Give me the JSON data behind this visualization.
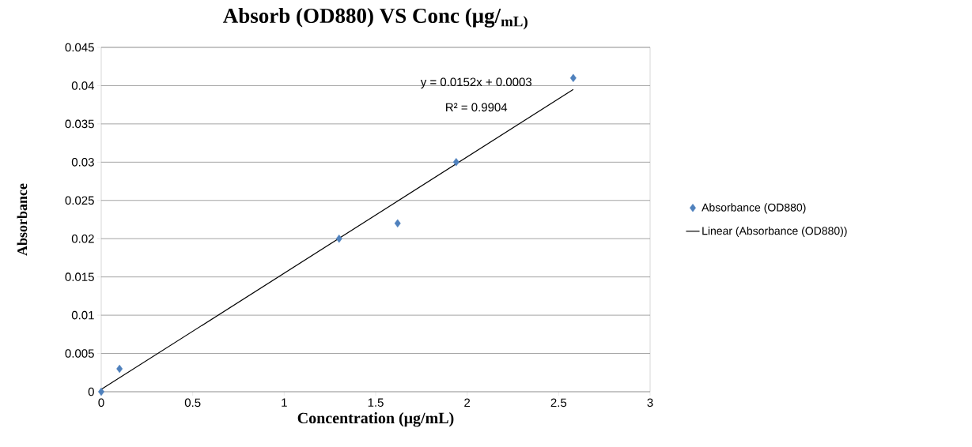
{
  "chart_data": {
    "type": "scatter",
    "title": "Absorb (OD880) VS Conc (μg/$_{mL)}$",
    "xlabel": "Concentration (μg/mL)",
    "ylabel": "Absorbance",
    "series": [
      {
        "name": "Absorbance (OD880)",
        "color": "#4f81bd",
        "marker": "diamond",
        "x": [
          0,
          0.1,
          1.3,
          1.62,
          1.94,
          2.58
        ],
        "values": [
          0,
          0.003,
          0.02,
          0.022,
          0.03,
          0.041
        ]
      },
      {
        "name": "Linear (Absorbance (OD880))",
        "type": "line",
        "color": "#000000",
        "marker": "none",
        "x": [
          0,
          2.58
        ],
        "values": [
          0.0003,
          0.0395
        ]
      }
    ],
    "annotations": [
      "y = 0.0152x + 0.0003",
      "R² = 0.9904"
    ],
    "xlim": [
      0,
      3
    ],
    "xticks": [
      0,
      0.5,
      1,
      1.5,
      2,
      2.5,
      3
    ],
    "ylim": [
      0,
      0.045
    ],
    "yticks": [
      0,
      0.005,
      0.01,
      0.015,
      0.02,
      0.025,
      0.03,
      0.035,
      0.04,
      0.045
    ],
    "grid": "y",
    "legend": "right"
  }
}
